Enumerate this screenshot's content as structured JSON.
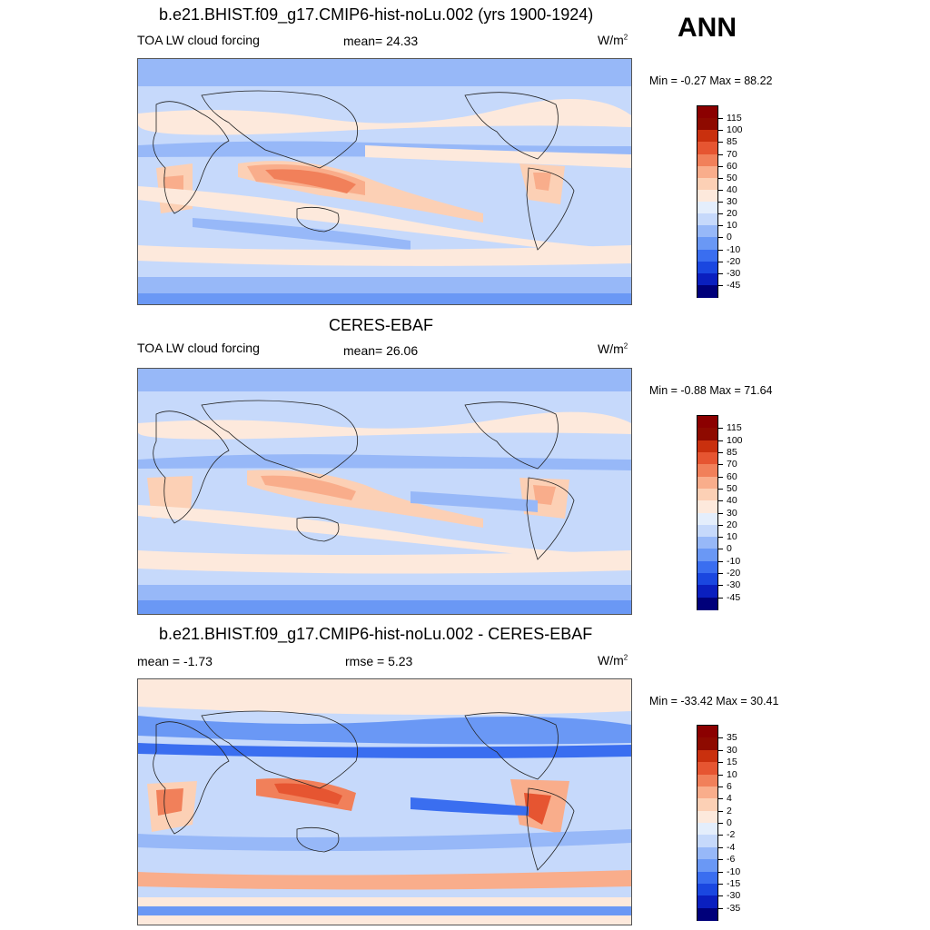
{
  "season": "ANN",
  "panels": [
    {
      "title": "b.e21.BHIST.f09_g17.CMIP6-hist-noLu.002 (yrs 1900-1924)",
      "left": "TOA LW cloud forcing",
      "center": "mean=  24.33",
      "units": "W/m",
      "units_sup": "2",
      "minmax": "Min =  -0.27 Max =  88.22",
      "colorbar_labels": [
        "115",
        "100",
        "85",
        "70",
        "60",
        "50",
        "40",
        "30",
        "20",
        "10",
        "0",
        "-10",
        "-20",
        "-30",
        "-45"
      ]
    },
    {
      "title": "CERES-EBAF",
      "left": "TOA LW cloud forcing",
      "center": "mean=  26.06",
      "units": "W/m",
      "units_sup": "2",
      "minmax": "Min =  -0.88 Max =  71.64",
      "colorbar_labels": [
        "115",
        "100",
        "85",
        "70",
        "60",
        "50",
        "40",
        "30",
        "20",
        "10",
        "0",
        "-10",
        "-20",
        "-30",
        "-45"
      ]
    },
    {
      "title": "b.e21.BHIST.f09_g17.CMIP6-hist-noLu.002 - CERES-EBAF",
      "left": "mean =  -1.73",
      "center": "rmse =   5.23",
      "units": "W/m",
      "units_sup": "2",
      "minmax": "Min = -33.42 Max =  30.41",
      "colorbar_labels": [
        "35",
        "30",
        "15",
        "10",
        "6",
        "4",
        "2",
        "0",
        "-2",
        "-4",
        "-6",
        "-10",
        "-15",
        "-30",
        "-35"
      ]
    }
  ],
  "chart_data": [
    {
      "type": "heatmap",
      "title": "b.e21.BHIST.f09_g17.CMIP6-hist-noLu.002 (yrs 1900-1924)",
      "variable": "TOA LW cloud forcing",
      "units": "W/m2",
      "mean": 24.33,
      "min": -0.27,
      "max": 88.22,
      "contour_levels": [
        -45,
        -30,
        -20,
        -10,
        0,
        10,
        20,
        30,
        40,
        50,
        60,
        70,
        85,
        100,
        115
      ]
    },
    {
      "type": "heatmap",
      "title": "CERES-EBAF",
      "variable": "TOA LW cloud forcing",
      "units": "W/m2",
      "mean": 26.06,
      "min": -0.88,
      "max": 71.64,
      "contour_levels": [
        -45,
        -30,
        -20,
        -10,
        0,
        10,
        20,
        30,
        40,
        50,
        60,
        70,
        85,
        100,
        115
      ]
    },
    {
      "type": "heatmap",
      "title": "b.e21.BHIST.f09_g17.CMIP6-hist-noLu.002 - CERES-EBAF",
      "units": "W/m2",
      "mean": -1.73,
      "rmse": 5.23,
      "min": -33.42,
      "max": 30.41,
      "contour_levels": [
        -35,
        -30,
        -15,
        -10,
        -6,
        -4,
        -2,
        0,
        2,
        4,
        6,
        10,
        15,
        30,
        35
      ]
    }
  ],
  "colors": {
    "scale": [
      "#000080",
      "#0a1fbf",
      "#1a47e0",
      "#3a6ef0",
      "#6a98f5",
      "#97b8f8",
      "#c6d9fb",
      "#e4eefc",
      "#fde9dc",
      "#fcd0b5",
      "#f9ad8b",
      "#f1805a",
      "#e65531",
      "#c9300e",
      "#8e0a00"
    ]
  }
}
